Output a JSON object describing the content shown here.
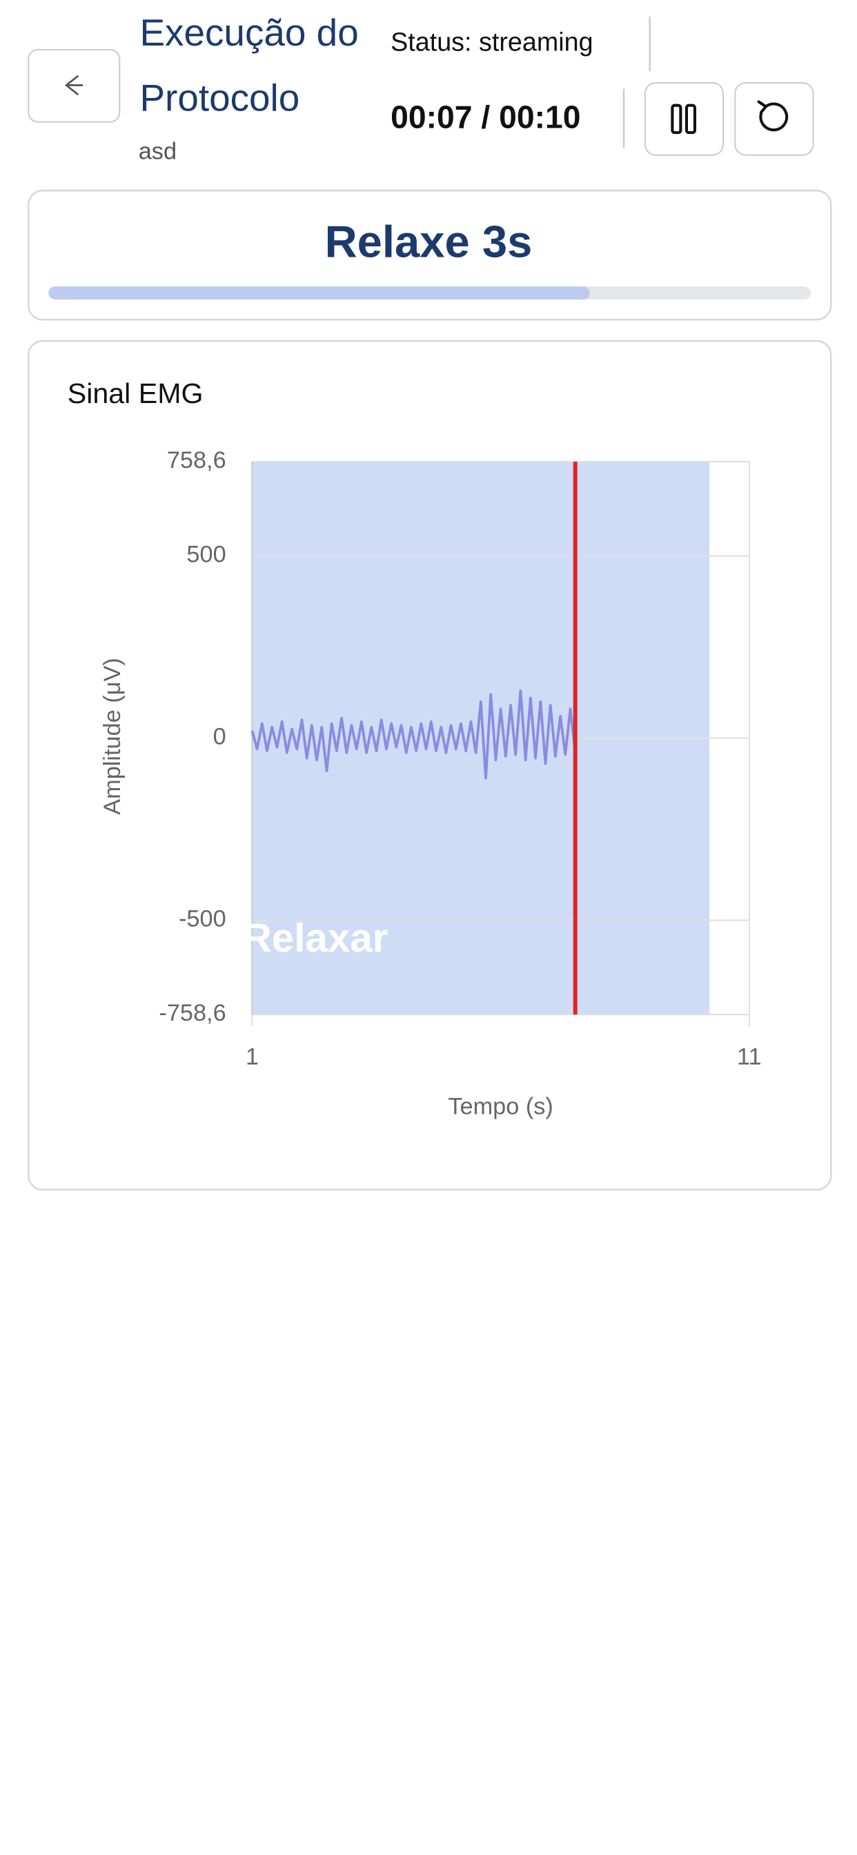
{
  "header": {
    "title_line1": "Execução do",
    "title_line2": "Protocolo",
    "subtitle": "asd",
    "status": "Status: streaming",
    "timer": "00:07 / 00:10"
  },
  "phase": {
    "title": "Relaxe 3s",
    "progress": 71
  },
  "chart_data": {
    "type": "line",
    "title": "Sinal EMG",
    "x_label": "Tempo (s)",
    "y_label": "Amplitude (μV)",
    "xlim": [
      1,
      11
    ],
    "xticks": [
      1,
      11
    ],
    "ylim": [
      -758.6,
      758.6
    ],
    "yticks": [
      {
        "value": 758.6,
        "label": "758,6"
      },
      500,
      0,
      -500,
      {
        "value": -758.6,
        "label": "-758,6"
      }
    ],
    "grid": true,
    "region": {
      "label": "Relaxar",
      "start": 1,
      "end": 10.2,
      "color": "#cfdcf6"
    },
    "cursor": {
      "x": 7.5,
      "color": "#e02424"
    },
    "series": [
      {
        "color": "#8a8ce0",
        "x": [
          1.0,
          1.1,
          1.2,
          1.3,
          1.4,
          1.5,
          1.6,
          1.7,
          1.8,
          1.9,
          2.0,
          2.1,
          2.2,
          2.3,
          2.4,
          2.5,
          2.6,
          2.7,
          2.8,
          2.9,
          3.0,
          3.1,
          3.2,
          3.3,
          3.4,
          3.5,
          3.6,
          3.7,
          3.8,
          3.9,
          4.0,
          4.1,
          4.2,
          4.3,
          4.4,
          4.5,
          4.6,
          4.7,
          4.8,
          4.9,
          5.0,
          5.1,
          5.2,
          5.3,
          5.4,
          5.5,
          5.6,
          5.7,
          5.8,
          5.9,
          6.0,
          6.1,
          6.2,
          6.3,
          6.4,
          6.5,
          6.6,
          6.7,
          6.8,
          6.9,
          7.0,
          7.1,
          7.2,
          7.3,
          7.4,
          7.5
        ],
        "values": [
          20,
          -30,
          40,
          -35,
          30,
          -25,
          45,
          -40,
          25,
          -30,
          50,
          -55,
          35,
          -60,
          30,
          -90,
          40,
          -35,
          55,
          -40,
          35,
          -30,
          45,
          -40,
          30,
          -35,
          50,
          -30,
          40,
          -25,
          35,
          -40,
          30,
          -35,
          40,
          -30,
          45,
          -35,
          30,
          -40,
          35,
          -30,
          40,
          -35,
          45,
          -40,
          100,
          -110,
          120,
          -60,
          80,
          -50,
          90,
          -45,
          130,
          -60,
          110,
          -55,
          100,
          -70,
          90,
          -50,
          60,
          -45,
          80,
          -40
        ]
      }
    ]
  }
}
